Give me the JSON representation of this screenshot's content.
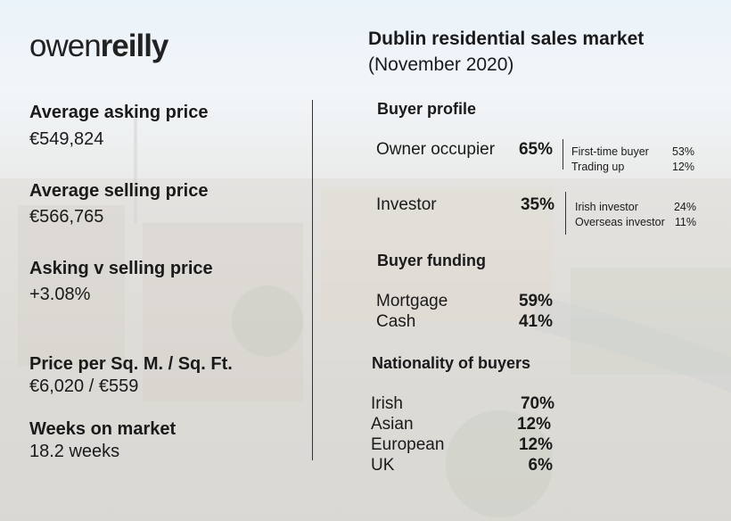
{
  "logo": {
    "part1": "owen",
    "part2": "reilly"
  },
  "header": {
    "title": "Dublin residential sales market",
    "subtitle": "(November 2020)"
  },
  "stats": [
    {
      "label": "Average asking price",
      "value": "€549,824"
    },
    {
      "label": "Average selling price",
      "value": "€566,765"
    },
    {
      "label": "Asking v selling price",
      "value": "+3.08%"
    },
    {
      "label": "Price per Sq. M. / Sq. Ft.",
      "value": "€6,020 / €559"
    },
    {
      "label": "Weeks on market",
      "value": "18.2 weeks"
    }
  ],
  "buyer_profile": {
    "title": "Buyer profile",
    "owner": {
      "label": "Owner occupier",
      "value": "65%",
      "sub": [
        {
          "label": "First-time buyer",
          "value": "53%"
        },
        {
          "label": "Trading up",
          "value": "12%"
        }
      ]
    },
    "investor": {
      "label": "Investor",
      "value": "35%",
      "sub": [
        {
          "label": "Irish investor",
          "value": "24%"
        },
        {
          "label": "Overseas investor",
          "value": "11%"
        }
      ]
    }
  },
  "buyer_funding": {
    "title": "Buyer funding",
    "rows": [
      {
        "label": "Mortgage",
        "value": "59%"
      },
      {
        "label": "Cash",
        "value": "41%"
      }
    ]
  },
  "nationality": {
    "title": "Nationality of buyers",
    "rows": [
      {
        "label": "Irish",
        "value": "70%"
      },
      {
        "label": "Asian",
        "value": "12%"
      },
      {
        "label": "European",
        "value": "12%"
      },
      {
        "label": "UK",
        "value": "6%"
      }
    ]
  }
}
